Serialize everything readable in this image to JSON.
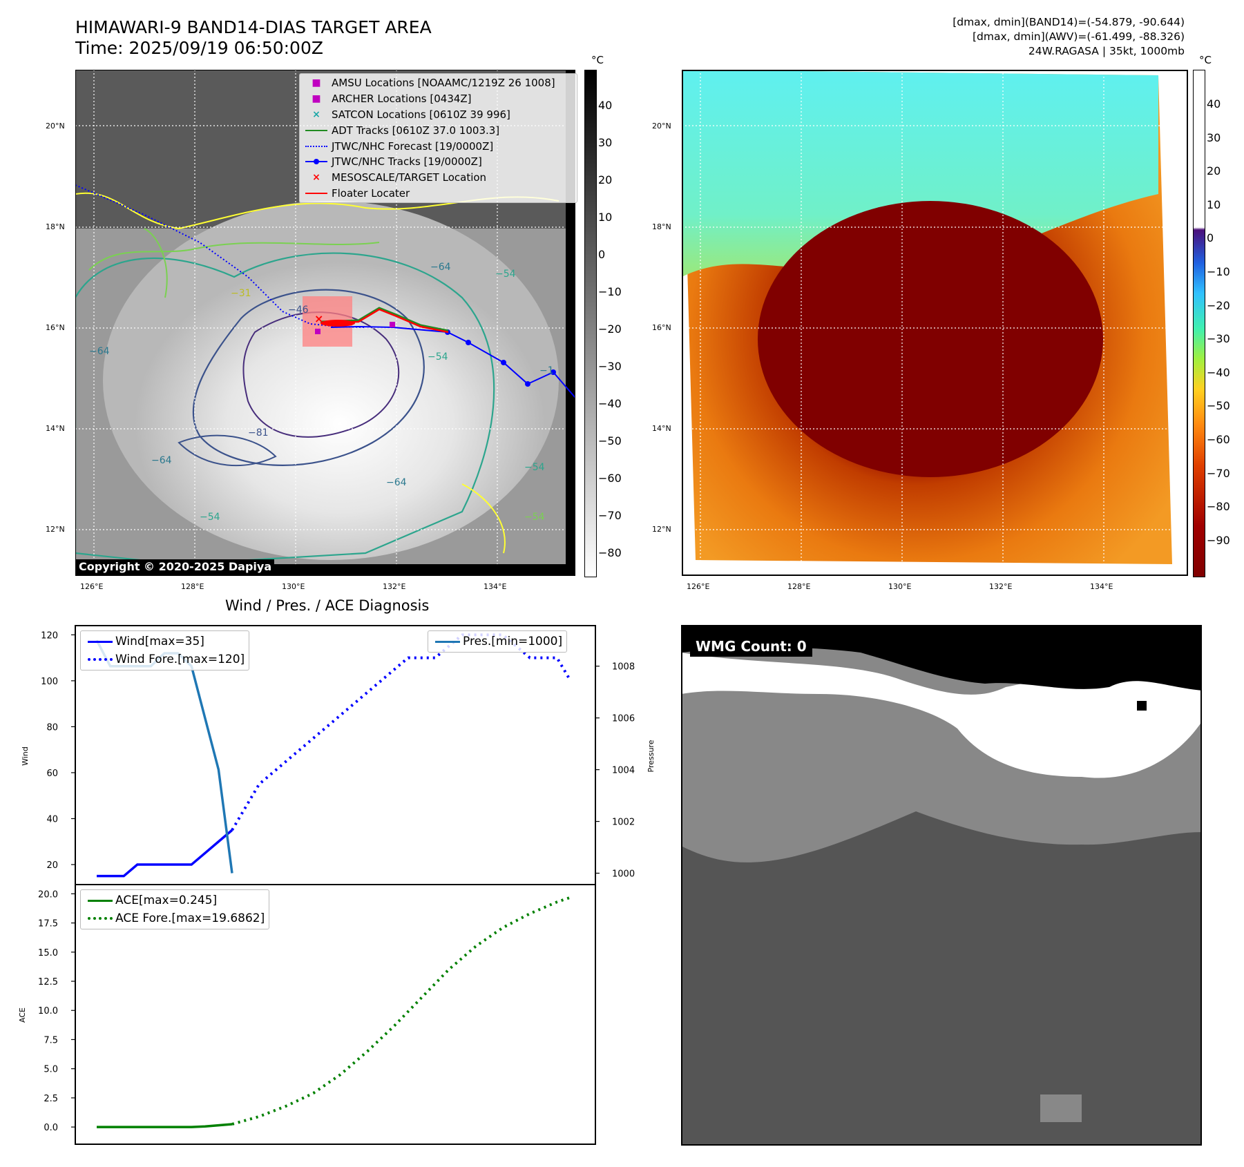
{
  "header": {
    "title_line1": "HIMAWARI-9 BAND14-DIAS TARGET AREA",
    "title_line2": "Time: 2025/09/19 06:50:00Z",
    "info_line1": "[dmax, dmin](BAND14)=(-54.879, -90.644)",
    "info_line2": "[dmax, dmin](AWV)=(-61.499, -88.326)",
    "info_line3": "24W.RAGASA | 35kt, 1000mb"
  },
  "ir_map": {
    "unit": "°C",
    "colorbar_ticks": [
      "40",
      "30",
      "20",
      "10",
      "0",
      "−10",
      "−20",
      "−30",
      "−40",
      "−50",
      "−60",
      "−70",
      "−80"
    ],
    "lat_labels": [
      "20°N",
      "18°N",
      "16°N",
      "14°N",
      "12°N"
    ],
    "lon_labels": [
      "126°E",
      "128°E",
      "130°E",
      "132°E",
      "134°E"
    ],
    "copyright": "Copyright © 2020-2025 Dapiya",
    "contour_labels": [
      "−64",
      "−31",
      "−46",
      "−64",
      "−81",
      "−64",
      "−64",
      "−54",
      "−54",
      "−54",
      "−54",
      "−1",
      "−54"
    ],
    "legend": [
      {
        "label": "AMSU Locations [NOAAMC/1219Z 26 1008]",
        "symbol": "■",
        "color": "#c000c0"
      },
      {
        "label": "ARCHER Locations [0434Z]",
        "symbol": "■",
        "color": "#c000c0"
      },
      {
        "label": "SATCON Locations [0610Z 39 996]",
        "symbol": "×",
        "color": "#1aa7a7"
      },
      {
        "label": "ADT Tracks [0610Z 37.0 1003.3]",
        "symbol": "line",
        "color": "#228b22"
      },
      {
        "label": "JTWC/NHC Forecast [19/0000Z]",
        "symbol": "dotted",
        "color": "#0000ff"
      },
      {
        "label": "JTWC/NHC Tracks [19/0000Z]",
        "symbol": "dotline",
        "color": "#0000ff"
      },
      {
        "label": "MESOSCALE/TARGET Location",
        "symbol": "×",
        "color": "#ff0000"
      },
      {
        "label": "Floater Locater",
        "symbol": "line",
        "color": "#ff0000"
      }
    ]
  },
  "awv_map": {
    "unit": "°C",
    "colorbar_ticks": [
      "40",
      "30",
      "20",
      "10",
      "0",
      "−10",
      "−20",
      "−30",
      "−40",
      "−50",
      "−60",
      "−70",
      "−80",
      "−90"
    ],
    "lat_labels": [
      "20°N",
      "18°N",
      "16°N",
      "14°N",
      "12°N"
    ],
    "lon_labels": [
      "126°E",
      "128°E",
      "130°E",
      "132°E",
      "134°E"
    ]
  },
  "wmg": {
    "label": "WMG Count: 0"
  },
  "colors": {
    "wind": "#0000ff",
    "pressure": "#1f77b4",
    "ace": "#008000",
    "track": "#0000ff",
    "floater": "#ff0000"
  },
  "chart_data": [
    {
      "type": "line",
      "title": "Wind / Pres. / ACE Diagnosis",
      "ylabel": "Wind",
      "ylim": [
        14,
        121
      ],
      "y_ticks": [
        "120",
        "100",
        "80",
        "60",
        "40",
        "20"
      ],
      "series": [
        {
          "name": "Wind[max=35]",
          "style": "solid",
          "x": [
            0,
            1,
            2,
            3,
            4,
            5,
            6,
            7,
            8,
            9,
            10
          ],
          "y": [
            15,
            15,
            15,
            20,
            20,
            20,
            20,
            20,
            25,
            30,
            35
          ]
        },
        {
          "name": "Wind Fore.[max=120]",
          "style": "dotted",
          "x": [
            10,
            11,
            12,
            13,
            14,
            15,
            16,
            17,
            18,
            19,
            20,
            21,
            22,
            23,
            24,
            25,
            26,
            27,
            28,
            29,
            30,
            31,
            32,
            33,
            34,
            35
          ],
          "y": [
            35,
            45,
            55,
            60,
            65,
            70,
            75,
            80,
            85,
            90,
            95,
            100,
            105,
            110,
            110,
            110,
            115,
            120,
            120,
            120,
            120,
            115,
            110,
            110,
            110,
            100
          ]
        }
      ]
    },
    {
      "type": "line",
      "ylabel": "Pressure",
      "ylim": [
        999.8,
        1009.3
      ],
      "y_ticks": [
        "1008",
        "1006",
        "1004",
        "1002",
        "1000"
      ],
      "series": [
        {
          "name": "Pres.[min=1000]",
          "style": "solid",
          "x": [
            0,
            1,
            2,
            3,
            4,
            5,
            6,
            7,
            8,
            9,
            10
          ],
          "y": [
            1009,
            1008,
            1008,
            1008,
            1008,
            1008.5,
            1008.5,
            1008,
            1006,
            1004,
            1000
          ]
        }
      ]
    },
    {
      "type": "line",
      "ylabel": "ACE",
      "ylim": [
        -1,
        20.2
      ],
      "y_ticks": [
        "20.0",
        "17.5",
        "15.0",
        "12.5",
        "10.0",
        "7.5",
        "5.0",
        "2.5",
        "0.0"
      ],
      "series": [
        {
          "name": "ACE[max=0.245]",
          "style": "solid",
          "x": [
            0,
            1,
            2,
            3,
            4,
            5,
            6,
            7,
            8,
            9,
            10
          ],
          "y": [
            0,
            0,
            0,
            0,
            0,
            0,
            0,
            0,
            0.05,
            0.15,
            0.245
          ]
        },
        {
          "name": "ACE Fore.[max=19.6862]",
          "style": "dotted",
          "x": [
            10,
            12,
            14,
            16,
            18,
            20,
            22,
            24,
            26,
            28,
            30,
            32,
            34,
            35
          ],
          "y": [
            0.245,
            0.9,
            1.8,
            2.9,
            4.5,
            6.5,
            8.7,
            11.1,
            13.5,
            15.5,
            17.1,
            18.3,
            19.3,
            19.69
          ]
        }
      ]
    }
  ]
}
